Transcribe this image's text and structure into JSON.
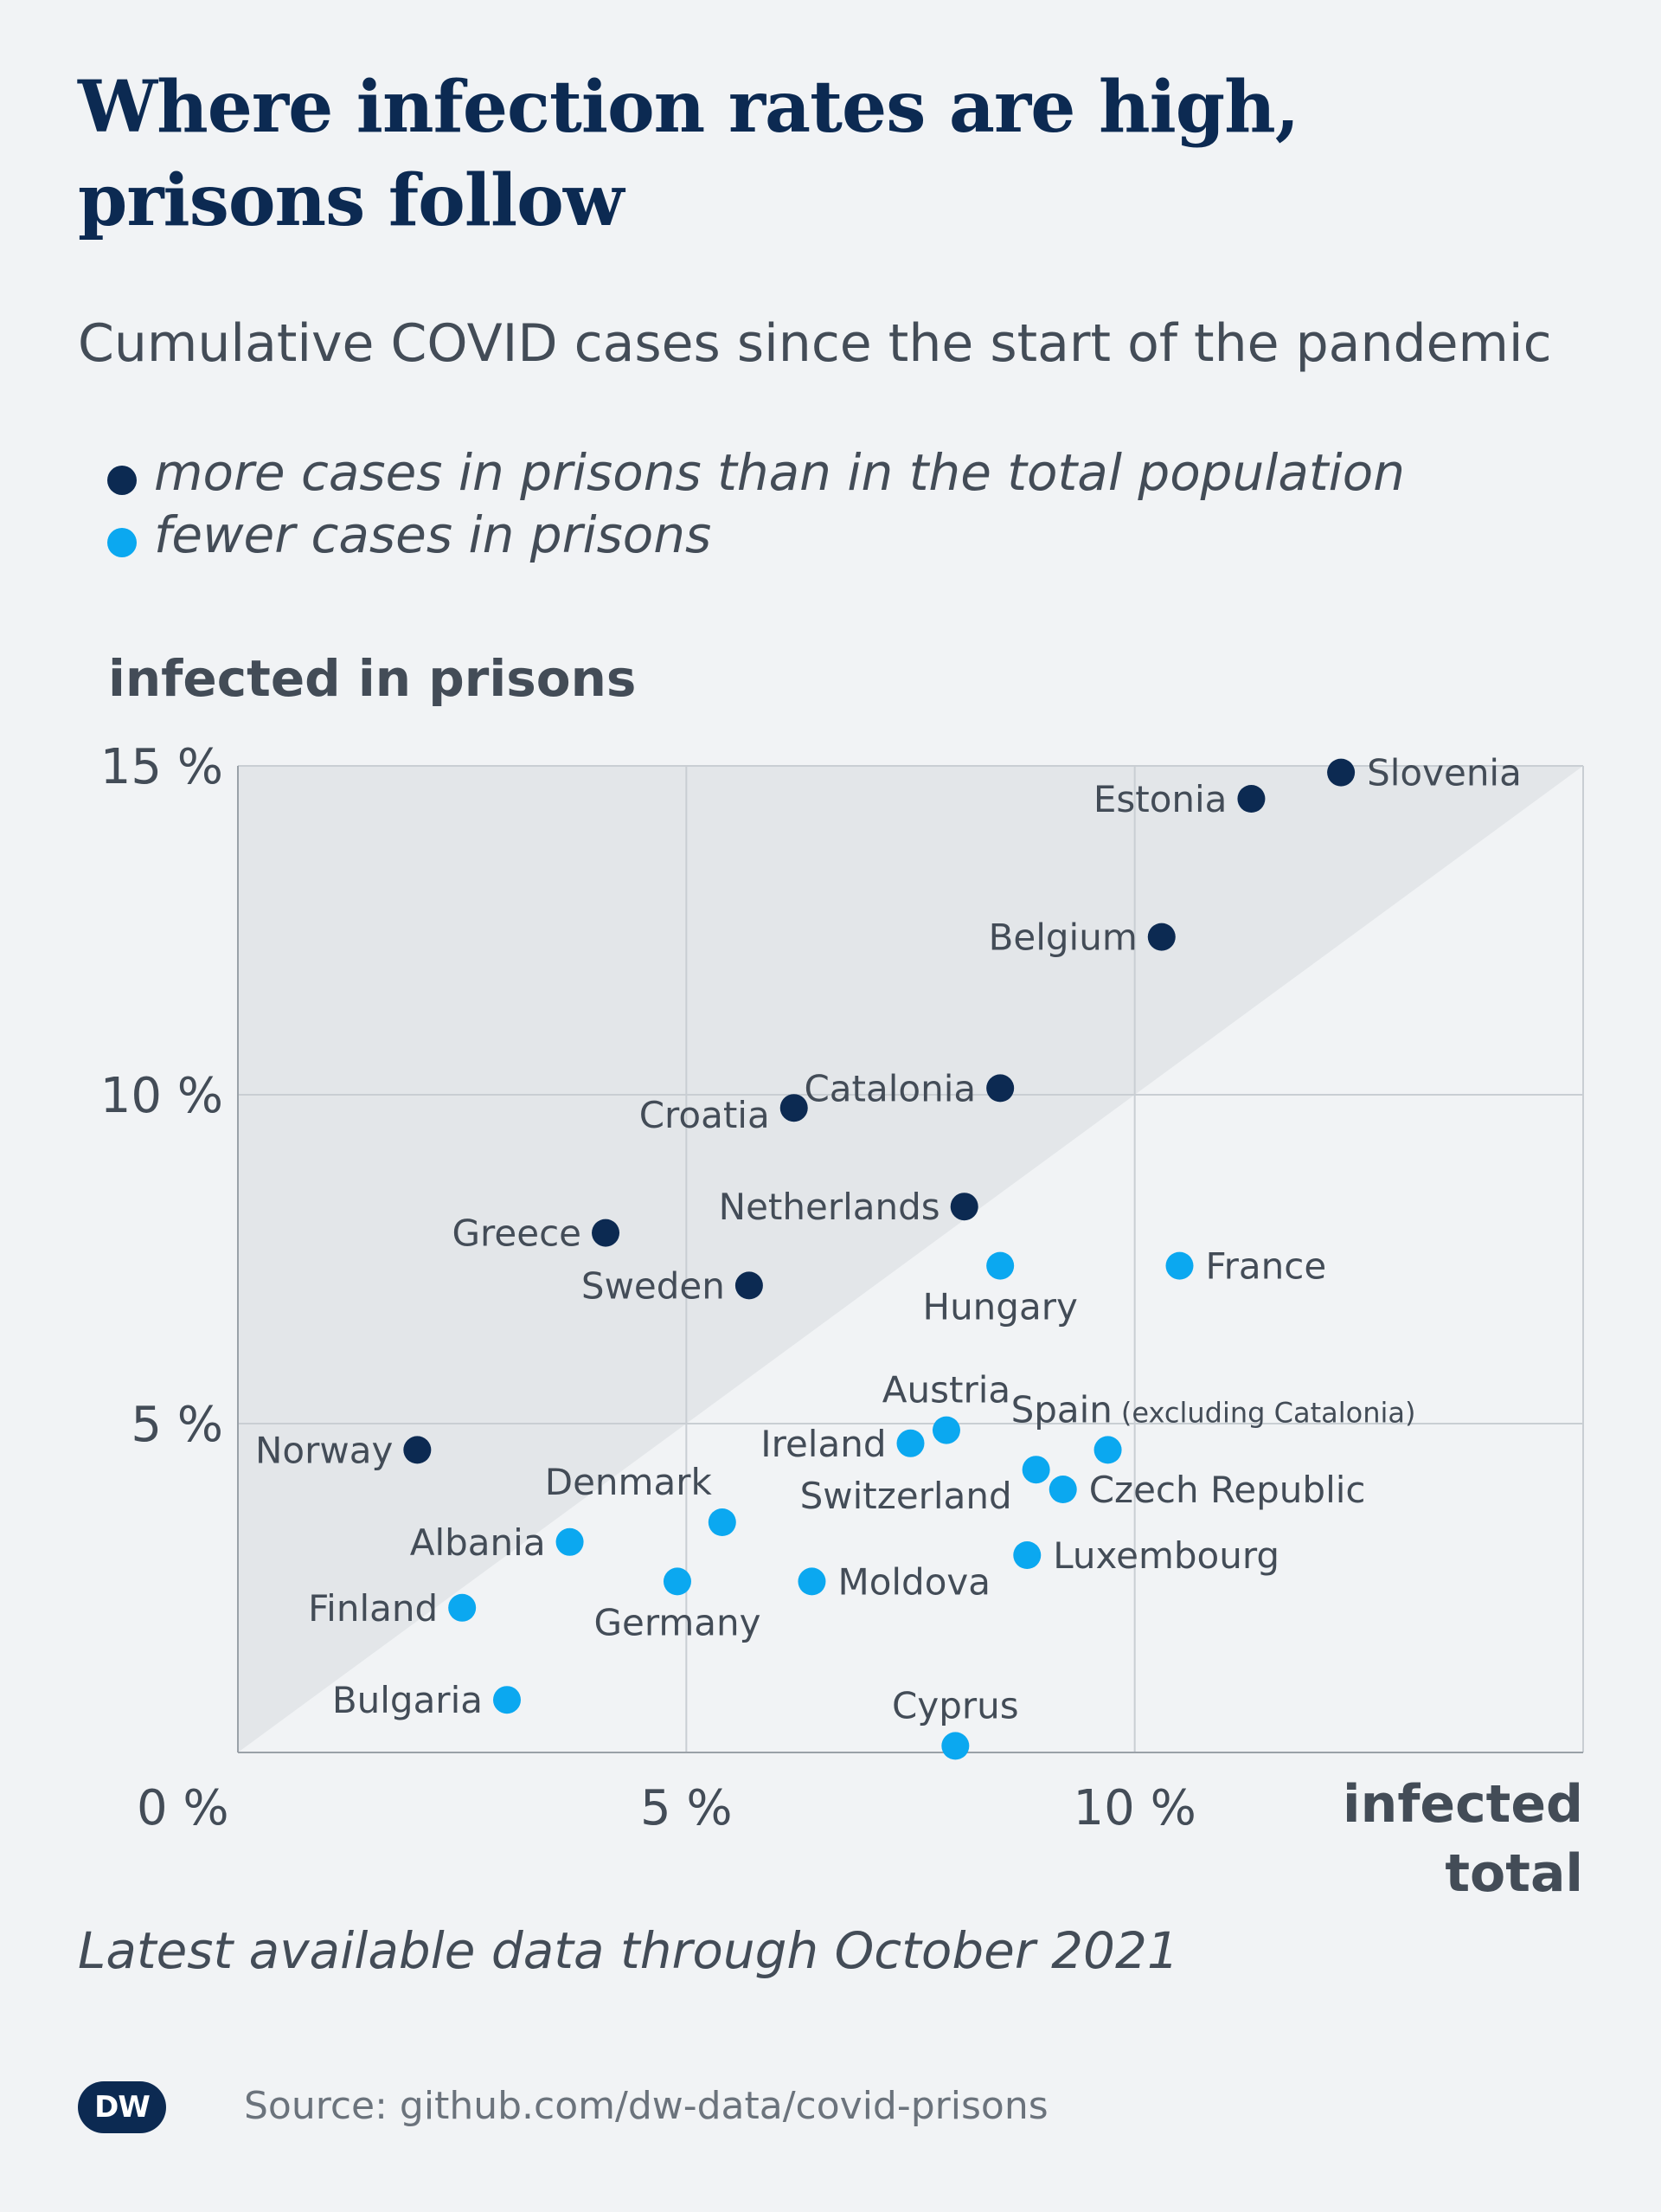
{
  "header": {
    "title": "Where infection rates are high, prisons follow",
    "subtitle": "Cumulative COVID cases since the start of the pandemic"
  },
  "legend": {
    "more": "more cases in prisons than in the total population",
    "fewer": "fewer cases in prisons"
  },
  "footer": {
    "note": "Latest available data through October 2021",
    "source": "Source: github.com/dw-data/covid-prisons",
    "logo": "DW"
  },
  "colors": {
    "more": "#0c2a52",
    "fewer": "#0ba8f0",
    "above_region": "#e3e6e9",
    "background": "#f1f3f5",
    "grid": "#c9ced3",
    "text": "#434c57"
  },
  "chart_data": {
    "type": "scatter",
    "ylabel": "infected in prisons",
    "xlabel": [
      "infected",
      "total"
    ],
    "xlim": [
      0,
      15
    ],
    "ylim": [
      0,
      15
    ],
    "x_ticks": [
      {
        "value": 0,
        "label": "0 %"
      },
      {
        "value": 5,
        "label": "5 %"
      },
      {
        "value": 10,
        "label": "10 %"
      }
    ],
    "y_ticks": [
      {
        "value": 5,
        "label": "5 %"
      },
      {
        "value": 10,
        "label": "10 %"
      },
      {
        "value": 15,
        "label": "15 %"
      }
    ],
    "reference_line": "y = x",
    "grid": true,
    "points": [
      {
        "label": "Slovenia",
        "x": 12.3,
        "y": 14.9,
        "group": "more"
      },
      {
        "label": "Estonia",
        "x": 11.3,
        "y": 14.5,
        "group": "more"
      },
      {
        "label": "Belgium",
        "x": 10.3,
        "y": 12.4,
        "group": "more"
      },
      {
        "label": "Catalonia",
        "x": 8.5,
        "y": 10.1,
        "group": "more"
      },
      {
        "label": "Croatia",
        "x": 6.2,
        "y": 9.8,
        "group": "more"
      },
      {
        "label": "Netherlands",
        "x": 8.1,
        "y": 8.3,
        "group": "more"
      },
      {
        "label": "Greece",
        "x": 4.1,
        "y": 7.9,
        "group": "more"
      },
      {
        "label": "Sweden",
        "x": 5.7,
        "y": 7.1,
        "group": "more"
      },
      {
        "label": "Norway",
        "x": 2.0,
        "y": 4.6,
        "group": "more"
      },
      {
        "label": "France",
        "x": 10.5,
        "y": 7.4,
        "group": "fewer"
      },
      {
        "label": "Hungary",
        "x": 8.5,
        "y": 7.4,
        "group": "fewer"
      },
      {
        "label": "Austria",
        "x": 7.9,
        "y": 4.9,
        "group": "fewer"
      },
      {
        "label": "Spain",
        "sublabel": "(excluding Catalonia)",
        "x": 9.7,
        "y": 4.6,
        "group": "fewer"
      },
      {
        "label": "Ireland",
        "x": 7.5,
        "y": 4.7,
        "group": "fewer"
      },
      {
        "label": "Switzerland",
        "x": 8.9,
        "y": 4.3,
        "group": "fewer"
      },
      {
        "label": "Czech Republic",
        "x": 9.2,
        "y": 4.0,
        "group": "fewer"
      },
      {
        "label": "Denmark",
        "x": 5.4,
        "y": 3.5,
        "group": "fewer"
      },
      {
        "label": "Albania",
        "x": 3.7,
        "y": 3.2,
        "group": "fewer"
      },
      {
        "label": "Luxembourg",
        "x": 8.8,
        "y": 3.0,
        "group": "fewer"
      },
      {
        "label": "Germany",
        "x": 4.9,
        "y": 2.6,
        "group": "fewer"
      },
      {
        "label": "Moldova",
        "x": 6.4,
        "y": 2.6,
        "group": "fewer"
      },
      {
        "label": "Finland",
        "x": 2.5,
        "y": 2.2,
        "group": "fewer"
      },
      {
        "label": "Bulgaria",
        "x": 3.0,
        "y": 0.8,
        "group": "fewer"
      },
      {
        "label": "Cyprus",
        "x": 8.0,
        "y": 0.1,
        "group": "fewer"
      }
    ]
  }
}
